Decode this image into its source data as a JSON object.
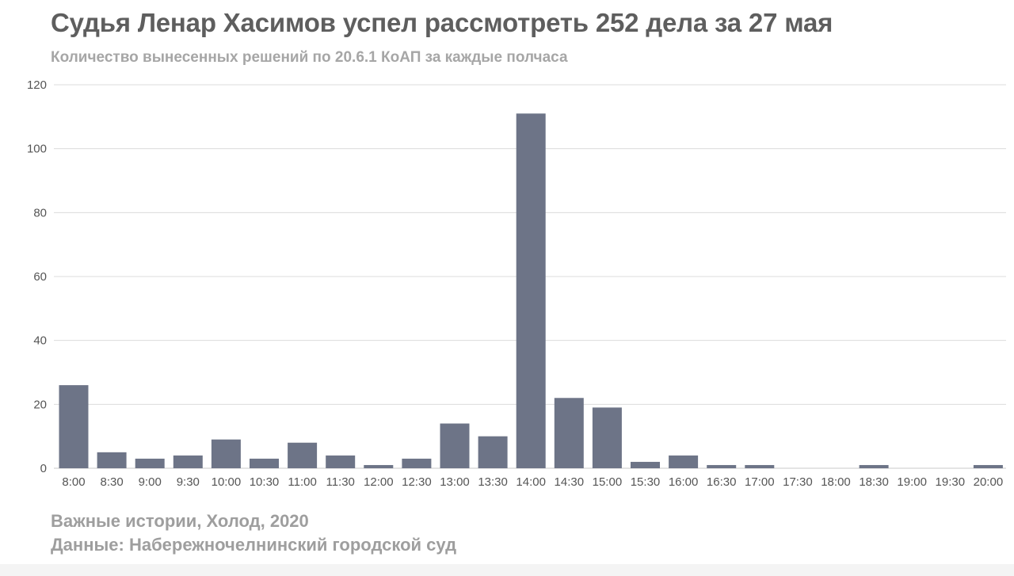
{
  "header": {
    "title": "Судья Ленар Хасимов успел рассмотреть 252 дела за 27 мая",
    "subtitle": "Количество вынесенных решений по 20.6.1 КоАП за каждые полчаса"
  },
  "footer": {
    "source_line": "Важные истории, Холод, 2020",
    "data_line": "Данные: Набережночелнинский городской суд"
  },
  "colors": {
    "bar": "#6d7487",
    "grid": "#dcdcdc",
    "axis_text": "#555555"
  },
  "chart_data": {
    "type": "bar",
    "title": "Судья Ленар Хасимов успел рассмотреть 252 дела за 27 мая",
    "subtitle": "Количество вынесенных решений по 20.6.1 КоАП за каждые полчаса",
    "xlabel": "",
    "ylabel": "",
    "ylim": [
      0,
      120
    ],
    "yticks": [
      0,
      20,
      40,
      60,
      80,
      100,
      120
    ],
    "grid": true,
    "categories": [
      "8:00",
      "8:30",
      "9:00",
      "9:30",
      "10:00",
      "10:30",
      "11:00",
      "11:30",
      "12:00",
      "12:30",
      "13:00",
      "13:30",
      "14:00",
      "14:30",
      "15:00",
      "15:30",
      "16:00",
      "16:30",
      "17:00",
      "17:30",
      "18:00",
      "18:30",
      "19:00",
      "19:30",
      "20:00"
    ],
    "values": [
      26,
      5,
      3,
      4,
      9,
      3,
      8,
      4,
      1,
      3,
      14,
      10,
      111,
      22,
      19,
      2,
      4,
      1,
      1,
      0,
      0,
      1,
      0,
      0,
      1
    ]
  }
}
